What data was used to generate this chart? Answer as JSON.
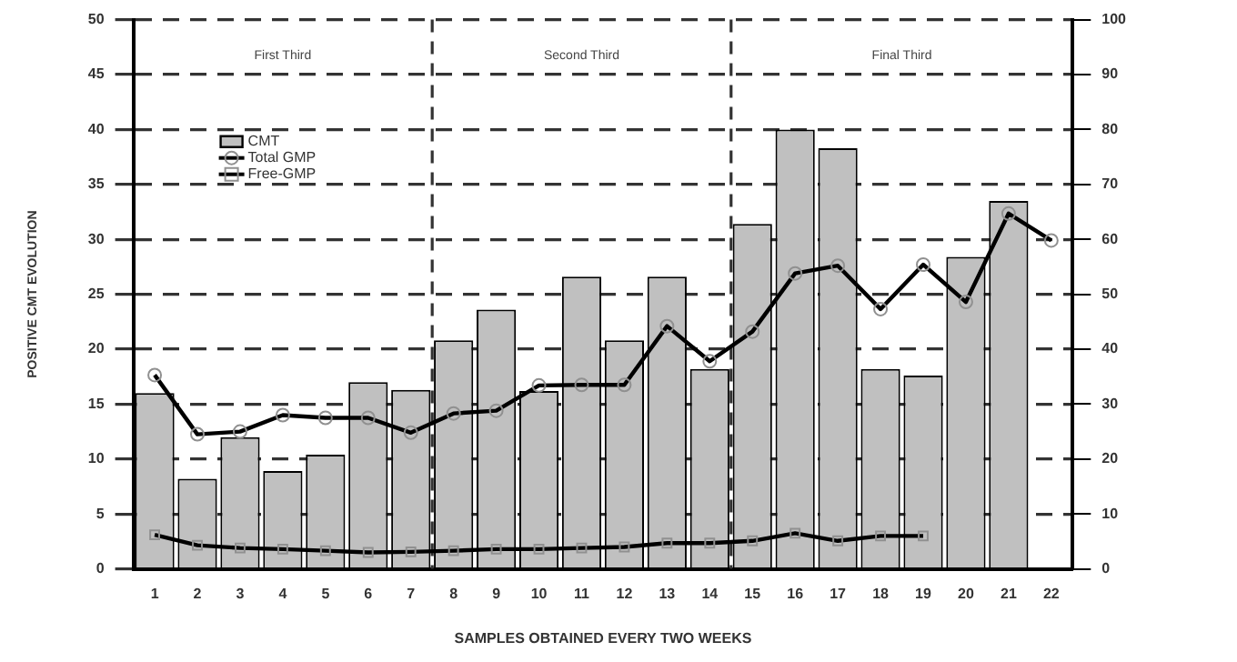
{
  "chart_data": {
    "type": "bar",
    "xlabel": "SAMPLES OBTAINED EVERY TWO WEEKS",
    "ylabel": "POSITIVE CMT EVOLUTION",
    "x": [
      1,
      2,
      3,
      4,
      5,
      6,
      7,
      8,
      9,
      10,
      11,
      12,
      13,
      14,
      15,
      16,
      17,
      18,
      19,
      20,
      21,
      22
    ],
    "series": [
      {
        "name": "CMT",
        "color": "#c0c0c0",
        "values": [
          16,
          8.2,
          12,
          8.9,
          10.4,
          17,
          16.3,
          20.8,
          23.6,
          16.2,
          26.6,
          20.8,
          26.6,
          18.2,
          31.4,
          40,
          38.3,
          18.2,
          17.6,
          28.4,
          33.5,
          null
        ]
      },
      {
        "name": "Total GMP",
        "type": "line",
        "axis": "y2",
        "color": "#000000",
        "marker": "circle",
        "values": [
          35.3,
          24.5,
          25,
          28,
          27.5,
          27.5,
          24.8,
          28.3,
          28.8,
          33.4,
          33.5,
          33.5,
          44.2,
          37.8,
          43.2,
          53.8,
          55.2,
          47.3,
          55.4,
          48.6,
          64.7,
          59.8
        ]
      },
      {
        "name": "Free-GMP",
        "type": "line",
        "axis": "y2",
        "color": "#000000",
        "marker": "square",
        "values": [
          6.2,
          4.3,
          3.8,
          3.6,
          3.3,
          3,
          3.1,
          3.3,
          3.6,
          3.6,
          3.8,
          4,
          4.7,
          4.7,
          5.1,
          6.5,
          5.1,
          6,
          6,
          null,
          null,
          null
        ]
      }
    ],
    "xlim": [
      0.5,
      22.5
    ],
    "xticks": [
      1,
      2,
      3,
      4,
      5,
      6,
      7,
      8,
      9,
      10,
      11,
      12,
      13,
      14,
      15,
      16,
      17,
      18,
      19,
      20,
      21,
      22
    ],
    "ylim": [
      0,
      50
    ],
    "yticks": [
      0,
      5,
      10,
      15,
      20,
      25,
      30,
      35,
      40,
      45,
      50
    ],
    "y2lim": [
      0,
      100
    ],
    "y2ticks": [
      0,
      10,
      20,
      30,
      40,
      50,
      60,
      70,
      80,
      90,
      100
    ],
    "ref_lines": [
      {
        "axis": "x",
        "value": 7.5,
        "line_style": "dashed"
      },
      {
        "axis": "x",
        "value": 14.5,
        "line_style": "dashed"
      }
    ],
    "annotations": [
      "First Third",
      "Second Third",
      "Final Third"
    ],
    "grid": "y",
    "legend": "top left"
  }
}
